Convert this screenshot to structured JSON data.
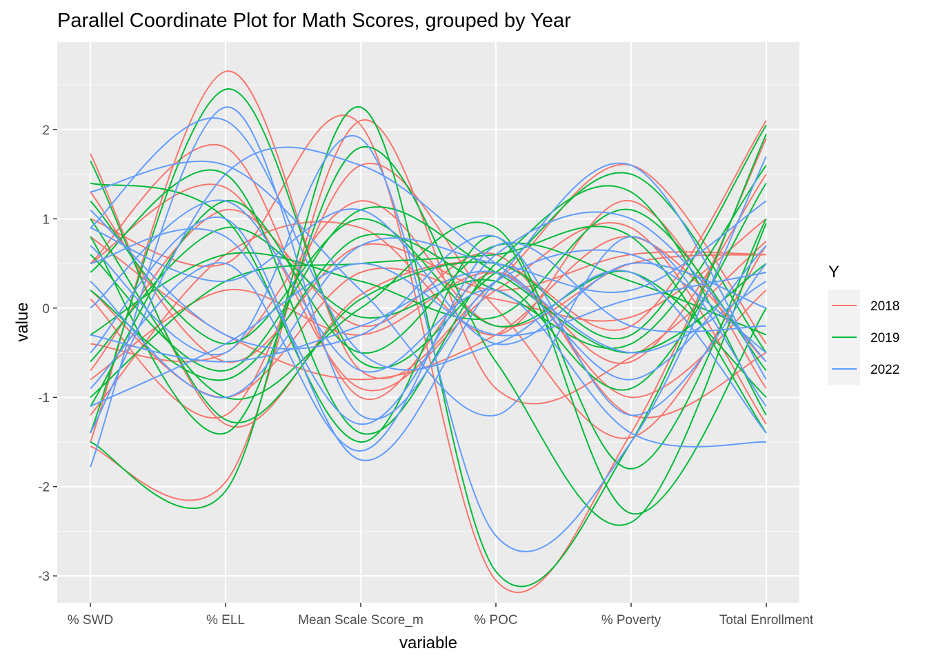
{
  "chart_data": {
    "type": "line",
    "title": "Parallel Coordinate Plot for Math Scores, grouped by Year",
    "xlabel": "variable",
    "ylabel": "value",
    "categories": [
      "% SWD",
      "% ELL",
      "Mean Scale Score_m",
      "% POC",
      "% Poverty",
      "Total Enrollment"
    ],
    "ylim": [
      -3.3,
      2.98
    ],
    "yticks": [
      -3,
      -2,
      -1,
      0,
      1,
      2
    ],
    "ytick_labels": [
      "-3",
      "-2",
      "-1",
      "0",
      "1",
      "2"
    ],
    "grid": true,
    "curve": "smoothed",
    "legend": {
      "title": "Y",
      "position": "right",
      "entries": [
        {
          "label": "2018",
          "color": "#F8766D"
        },
        {
          "label": "2019",
          "color": "#00BA38"
        },
        {
          "label": "2022",
          "color": "#619CFF"
        }
      ]
    },
    "series": [
      {
        "group": "2018",
        "values": [
          -1.55,
          -1.95,
          2.1,
          -0.9,
          -0.55,
          0.75
        ]
      },
      {
        "group": "2018",
        "values": [
          1.73,
          -1.3,
          0.15,
          0.5,
          -0.2,
          2.1
        ]
      },
      {
        "group": "2018",
        "values": [
          -1.5,
          2.65,
          -0.7,
          0.3,
          1.6,
          -0.4
        ]
      },
      {
        "group": "2018",
        "values": [
          0.5,
          1.35,
          -0.9,
          0.2,
          0.9,
          -1.3
        ]
      },
      {
        "group": "2018",
        "values": [
          0.1,
          -1.2,
          1.6,
          0.0,
          -1.45,
          0.7
        ]
      },
      {
        "group": "2018",
        "values": [
          -0.8,
          0.2,
          -0.3,
          0.4,
          -0.6,
          1.5
        ]
      },
      {
        "group": "2018",
        "values": [
          -1.2,
          0.6,
          0.9,
          -0.3,
          1.2,
          -0.9
        ]
      },
      {
        "group": "2018",
        "values": [
          1.3,
          -0.6,
          0.7,
          0.2,
          0.6,
          0.6
        ]
      },
      {
        "group": "2018",
        "values": [
          0.5,
          1.8,
          -1.0,
          0.4,
          -1.0,
          0.2
        ]
      },
      {
        "group": "2018",
        "values": [
          0.8,
          -0.3,
          -0.8,
          -0.3,
          0.8,
          -0.6
        ]
      },
      {
        "group": "2018",
        "values": [
          -0.4,
          -0.5,
          1.2,
          -0.2,
          0.5,
          0.6
        ]
      },
      {
        "group": "2018",
        "values": [
          -0.7,
          1.1,
          -0.2,
          0.6,
          -1.2,
          -0.5
        ]
      },
      {
        "group": "2018",
        "values": [
          0.2,
          -1.0,
          0.4,
          0.1,
          -0.1,
          1.0
        ]
      },
      {
        "group": "2018",
        "values": [
          1.0,
          0.5,
          2.05,
          -3.05,
          -1.4,
          1.9
        ]
      },
      {
        "group": "2019",
        "values": [
          -1.5,
          -2.05,
          2.25,
          -2.95,
          -1.5,
          1.95
        ]
      },
      {
        "group": "2019",
        "values": [
          1.65,
          -1.25,
          0.1,
          0.5,
          -0.3,
          2.05
        ]
      },
      {
        "group": "2019",
        "values": [
          -1.4,
          2.45,
          -0.6,
          0.4,
          1.5,
          -0.5
        ]
      },
      {
        "group": "2019",
        "values": [
          0.4,
          1.5,
          -1.4,
          0.5,
          1.3,
          -1.2
        ]
      },
      {
        "group": "2019",
        "values": [
          0.8,
          -1.4,
          1.8,
          -0.6,
          -2.4,
          0.95
        ]
      },
      {
        "group": "2019",
        "values": [
          -0.6,
          0.9,
          -0.1,
          0.3,
          -0.9,
          1.4
        ]
      },
      {
        "group": "2019",
        "values": [
          1.2,
          -0.4,
          1.0,
          -0.2,
          0.4,
          -1.0
        ]
      },
      {
        "group": "2019",
        "values": [
          -1.0,
          0.3,
          0.5,
          0.6,
          0.8,
          -1.4
        ]
      },
      {
        "group": "2019",
        "values": [
          0.2,
          -0.8,
          0.8,
          0.2,
          -0.4,
          1.6
        ]
      },
      {
        "group": "2019",
        "values": [
          1.4,
          1.0,
          -1.5,
          0.8,
          -2.3,
          0.0
        ]
      },
      {
        "group": "2019",
        "values": [
          -0.3,
          0.6,
          0.3,
          -0.1,
          1.1,
          -0.7
        ]
      },
      {
        "group": "2019",
        "values": [
          0.6,
          -0.7,
          1.1,
          0.4,
          -0.5,
          0.5
        ]
      },
      {
        "group": "2019",
        "values": [
          -1.1,
          1.2,
          -0.5,
          0.7,
          0.3,
          -0.3
        ]
      },
      {
        "group": "2019",
        "values": [
          1.0,
          -1.0,
          0.0,
          0.9,
          -1.8,
          1.0
        ]
      },
      {
        "group": "2022",
        "values": [
          -1.78,
          2.25,
          -1.2,
          0.3,
          0.6,
          -0.5
        ]
      },
      {
        "group": "2022",
        "values": [
          0.9,
          2.1,
          -0.5,
          -0.4,
          0.4,
          -1.4
        ]
      },
      {
        "group": "2022",
        "values": [
          -1.4,
          1.5,
          1.6,
          0.5,
          -0.5,
          0.3
        ]
      },
      {
        "group": "2022",
        "values": [
          0.7,
          -0.5,
          1.9,
          -2.55,
          -1.5,
          1.7
        ]
      },
      {
        "group": "2022",
        "values": [
          -0.5,
          1.0,
          -1.7,
          0.3,
          1.6,
          -0.8
        ]
      },
      {
        "group": "2022",
        "values": [
          1.1,
          -0.3,
          -0.3,
          0.8,
          -1.2,
          0.5
        ]
      },
      {
        "group": "2022",
        "values": [
          0.3,
          -1.0,
          0.7,
          0.5,
          0.2,
          1.2
        ]
      },
      {
        "group": "2022",
        "values": [
          -0.9,
          0.5,
          -1.6,
          0.7,
          -0.2,
          -0.2
        ]
      },
      {
        "group": "2022",
        "values": [
          1.3,
          1.6,
          0.2,
          -1.2,
          0.8,
          -1.1
        ]
      },
      {
        "group": "2022",
        "values": [
          -0.3,
          -0.6,
          -0.2,
          0.4,
          -0.8,
          0.7
        ]
      },
      {
        "group": "2022",
        "values": [
          0.5,
          0.8,
          -1.3,
          0.6,
          1.0,
          -0.6
        ]
      },
      {
        "group": "2022",
        "values": [
          -1.1,
          -0.4,
          0.5,
          -0.3,
          0.1,
          0.4
        ]
      },
      {
        "group": "2022",
        "values": [
          0.0,
          1.2,
          -0.7,
          0.2,
          -1.4,
          -1.5
        ]
      },
      {
        "group": "2022",
        "values": [
          0.9,
          0.3,
          1.1,
          -0.4,
          0.5,
          0.0
        ]
      }
    ]
  }
}
